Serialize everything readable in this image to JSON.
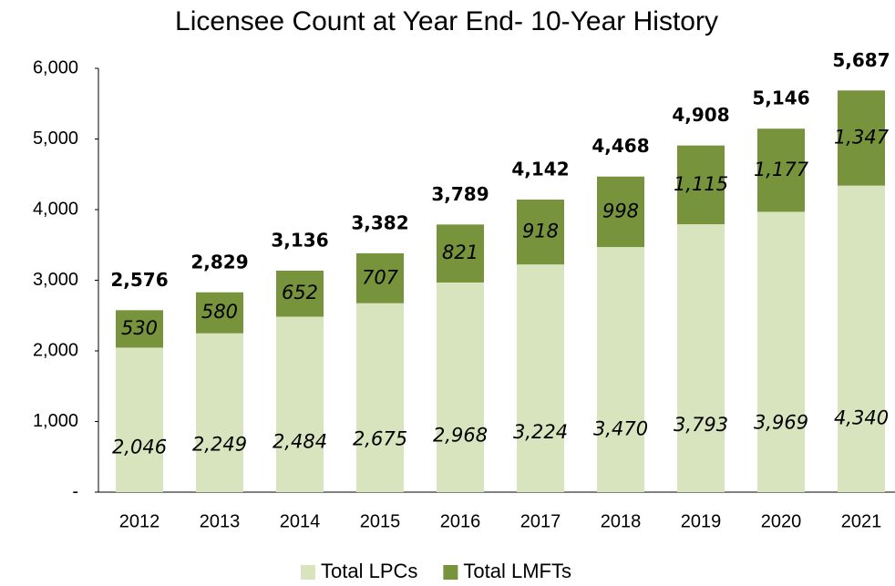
{
  "chart_data": {
    "type": "stacked_bar",
    "title": "Licensee Count at Year End- 10-Year History",
    "categories": [
      "2012",
      "2013",
      "2014",
      "2015",
      "2016",
      "2017",
      "2018",
      "2019",
      "2020",
      "2021"
    ],
    "series": [
      {
        "name": "Total LPCs",
        "color": "#d7e4bd",
        "values": [
          2046,
          2249,
          2484,
          2675,
          2968,
          3224,
          3470,
          3793,
          3969,
          4340
        ],
        "value_labels": [
          "2,046",
          "2,249",
          "2,484",
          "2,675",
          "2,968",
          "3,224",
          "3,470",
          "3,793",
          "3,969",
          "4,340"
        ]
      },
      {
        "name": "Total LMFTs",
        "color": "#77933c",
        "values": [
          530,
          580,
          652,
          707,
          821,
          918,
          998,
          1115,
          1177,
          1347
        ],
        "value_labels": [
          "530",
          "580",
          "652",
          "707",
          "821",
          "918",
          "998",
          "1,115",
          "1,177",
          "1,347"
        ]
      }
    ],
    "totals": [
      2576,
      2829,
      3136,
      3382,
      3789,
      4142,
      4468,
      4908,
      5146,
      5687
    ],
    "total_labels": [
      "2,576",
      "2,829",
      "3,136",
      "3,382",
      "3,789",
      "4,142",
      "4,468",
      "4,908",
      "5,146",
      "5,687"
    ],
    "ylim": [
      0,
      6000
    ],
    "yticks": [
      {
        "value": 0,
        "label": "-"
      },
      {
        "value": 1000,
        "label": "1,000"
      },
      {
        "value": 2000,
        "label": "2,000"
      },
      {
        "value": 3000,
        "label": "3,000"
      },
      {
        "value": 4000,
        "label": "4,000"
      },
      {
        "value": 5000,
        "label": "5,000"
      },
      {
        "value": 6000,
        "label": "6,000"
      }
    ],
    "legend": "bottom",
    "grid": false
  }
}
